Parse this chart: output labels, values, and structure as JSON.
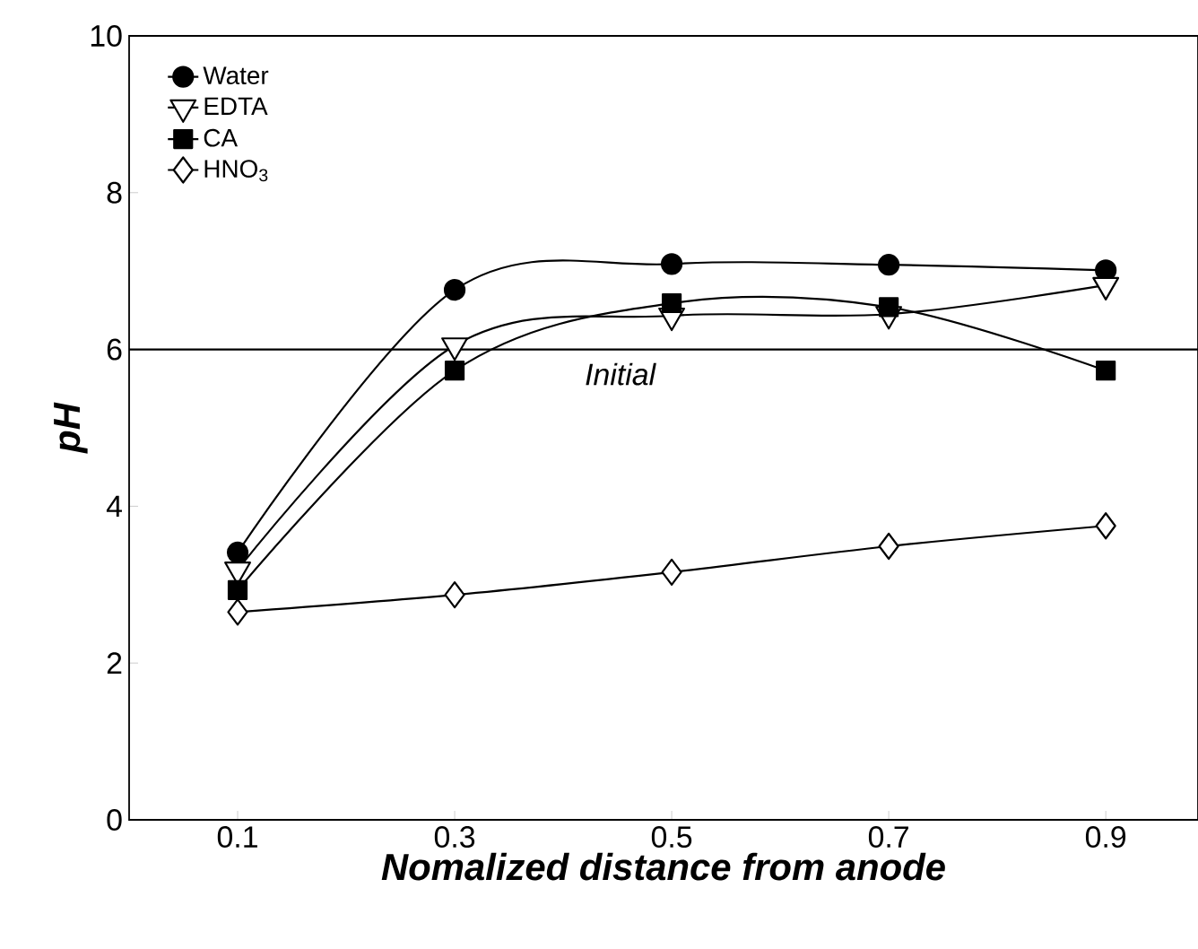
{
  "chart_data": {
    "type": "line",
    "xlabel": "Nomalized distance from anode",
    "ylabel": "pH",
    "x": [
      0.1,
      0.3,
      0.5,
      0.7,
      0.9
    ],
    "series": [
      {
        "name": "Water",
        "color": "#000000",
        "marker": "circle",
        "values": [
          3.41,
          6.76,
          7.09,
          7.08,
          7.01
        ]
      },
      {
        "name": "EDTA",
        "color": "#000000",
        "marker": "triangle",
        "values": [
          3.19,
          6.05,
          6.43,
          6.45,
          6.82
        ]
      },
      {
        "name": "CA",
        "color": "#000000",
        "marker": "square",
        "values": [
          2.93,
          5.73,
          6.59,
          6.54,
          5.73
        ]
      },
      {
        "name": "HNO$_{3}$",
        "color": "#000000",
        "marker": "diamond",
        "values": [
          2.65,
          2.87,
          3.16,
          3.49,
          3.75
        ]
      }
    ],
    "xlim": [
      0,
      0.985
    ],
    "xticks": [
      0.1,
      0.3,
      0.5,
      0.7,
      0.9
    ],
    "ylim": [
      0,
      10
    ],
    "yticks": [
      0,
      2,
      4,
      6,
      8,
      10
    ],
    "ref_lines": [
      {
        "axis": "y",
        "value": 6,
        "label": "Initial",
        "color": "#000000"
      }
    ],
    "legend": "top left",
    "grid": false
  }
}
